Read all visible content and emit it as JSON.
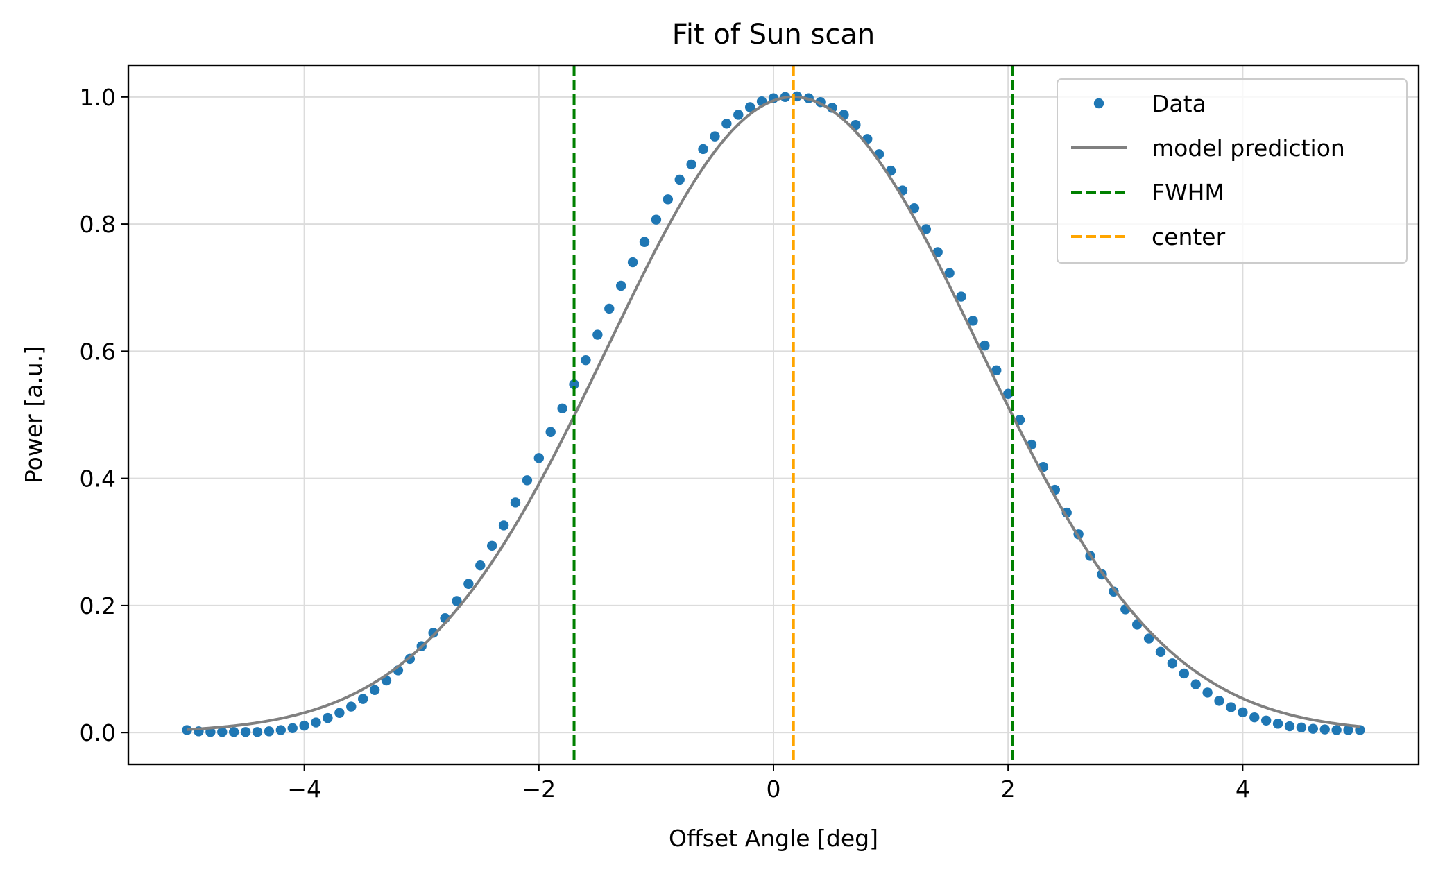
{
  "chart_data": {
    "type": "scatter",
    "title": "Fit of Sun scan",
    "xlabel": "Offset Angle [deg]",
    "ylabel": "Power [a.u.]",
    "xlim": [
      -5.5,
      5.5
    ],
    "ylim": [
      -0.05,
      1.05
    ],
    "xticks": [
      -4,
      -2,
      0,
      2,
      4
    ],
    "xtick_labels": [
      "−4",
      "−2",
      "0",
      "2",
      "4"
    ],
    "yticks": [
      0.0,
      0.2,
      0.4,
      0.6,
      0.8,
      1.0
    ],
    "ytick_labels": [
      "0.0",
      "0.2",
      "0.4",
      "0.6",
      "0.8",
      "1.0"
    ],
    "grid": true,
    "legend_position": "top-right",
    "series": [
      {
        "name": "Data",
        "kind": "scatter",
        "color": "#1f77b4",
        "x": [
          -5.0,
          -4.9,
          -4.8,
          -4.7,
          -4.6,
          -4.5,
          -4.4,
          -4.3,
          -4.2,
          -4.1,
          -4.0,
          -3.9,
          -3.8,
          -3.7,
          -3.6,
          -3.5,
          -3.4,
          -3.3,
          -3.2,
          -3.1,
          -3.0,
          -2.9,
          -2.8,
          -2.7,
          -2.6,
          -2.5,
          -2.4,
          -2.3,
          -2.2,
          -2.1,
          -2.0,
          -1.9,
          -1.8,
          -1.7,
          -1.6,
          -1.5,
          -1.4,
          -1.3,
          -1.2,
          -1.1,
          -1.0,
          -0.9,
          -0.8,
          -0.7,
          -0.6,
          -0.5,
          -0.4,
          -0.3,
          -0.2,
          -0.1,
          0.0,
          0.1,
          0.2,
          0.3,
          0.4,
          0.5,
          0.6,
          0.7,
          0.8,
          0.9,
          1.0,
          1.1,
          1.2,
          1.3,
          1.4,
          1.5,
          1.6,
          1.7,
          1.8,
          1.9,
          2.0,
          2.1,
          2.2,
          2.3,
          2.4,
          2.5,
          2.6,
          2.7,
          2.8,
          2.9,
          3.0,
          3.1,
          3.2,
          3.3,
          3.4,
          3.5,
          3.6,
          3.7,
          3.8,
          3.9,
          4.0,
          4.1,
          4.2,
          4.3,
          4.4,
          4.5,
          4.6,
          4.7,
          4.8,
          4.9,
          5.0
        ],
        "y": [
          0.004,
          0.002,
          0.001,
          0.001,
          0.001,
          0.001,
          0.001,
          0.002,
          0.004,
          0.007,
          0.011,
          0.016,
          0.023,
          0.031,
          0.041,
          0.053,
          0.067,
          0.082,
          0.098,
          0.116,
          0.136,
          0.157,
          0.18,
          0.207,
          0.234,
          0.263,
          0.294,
          0.326,
          0.362,
          0.397,
          0.432,
          0.473,
          0.51,
          0.548,
          0.586,
          0.626,
          0.667,
          0.703,
          0.74,
          0.772,
          0.807,
          0.839,
          0.87,
          0.894,
          0.918,
          0.938,
          0.958,
          0.972,
          0.984,
          0.993,
          0.998,
          1.0,
          1.001,
          0.998,
          0.992,
          0.983,
          0.972,
          0.956,
          0.934,
          0.91,
          0.884,
          0.853,
          0.825,
          0.792,
          0.756,
          0.723,
          0.686,
          0.648,
          0.609,
          0.57,
          0.533,
          0.492,
          0.453,
          0.418,
          0.382,
          0.346,
          0.312,
          0.278,
          0.249,
          0.222,
          0.194,
          0.17,
          0.148,
          0.127,
          0.109,
          0.093,
          0.076,
          0.063,
          0.05,
          0.04,
          0.032,
          0.024,
          0.019,
          0.014,
          0.01,
          0.008,
          0.006,
          0.005,
          0.004,
          0.004,
          0.004
        ]
      },
      {
        "name": "model prediction",
        "kind": "line",
        "color": "#808080",
        "model": "gaussian",
        "amplitude": 1.0,
        "center": 0.17,
        "fwhm": 3.73,
        "x_range": [
          -5.0,
          5.0
        ]
      },
      {
        "name": "FWHM",
        "kind": "vline",
        "color": "#008000",
        "linestyle": "dashed",
        "x": [
          -1.7,
          2.04
        ]
      },
      {
        "name": "center",
        "kind": "vline",
        "color": "#ffa500",
        "linestyle": "dashed",
        "x": [
          0.17
        ]
      }
    ]
  }
}
